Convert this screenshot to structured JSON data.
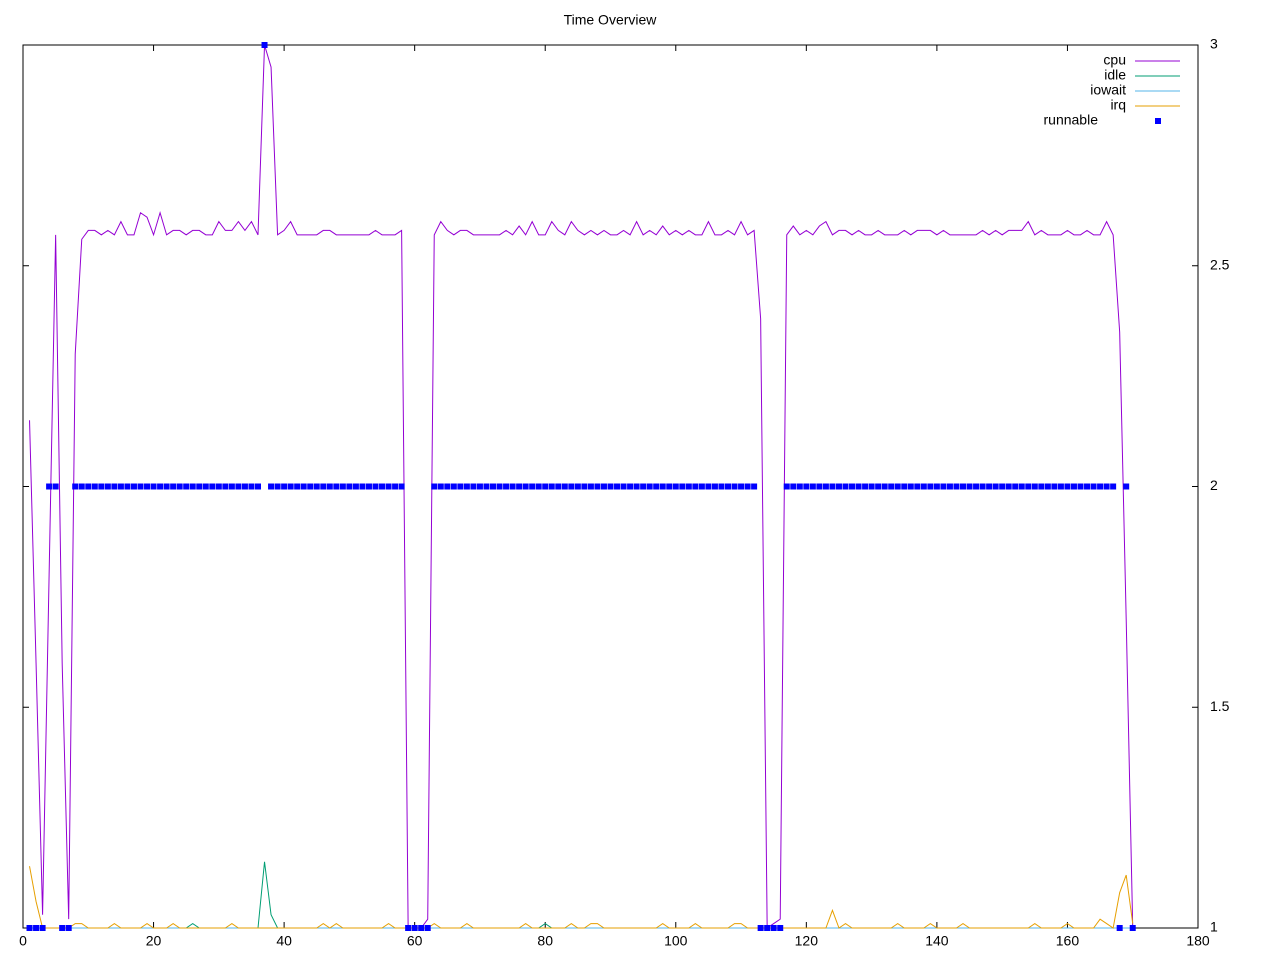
{
  "chart_data": {
    "type": "line",
    "title": "Time Overview",
    "x": [
      1,
      2,
      3,
      4,
      5,
      6,
      7,
      8,
      9,
      10,
      11,
      12,
      13,
      14,
      15,
      16,
      17,
      18,
      19,
      20,
      21,
      22,
      23,
      24,
      25,
      26,
      27,
      28,
      29,
      30,
      31,
      32,
      33,
      34,
      35,
      36,
      37,
      38,
      39,
      40,
      41,
      42,
      43,
      44,
      45,
      46,
      47,
      48,
      49,
      50,
      51,
      52,
      53,
      54,
      55,
      56,
      57,
      58,
      59,
      60,
      61,
      62,
      63,
      64,
      65,
      66,
      67,
      68,
      69,
      70,
      71,
      72,
      73,
      74,
      75,
      76,
      77,
      78,
      79,
      80,
      81,
      82,
      83,
      84,
      85,
      86,
      87,
      88,
      89,
      90,
      91,
      92,
      93,
      94,
      95,
      96,
      97,
      98,
      99,
      100,
      101,
      102,
      103,
      104,
      105,
      106,
      107,
      108,
      109,
      110,
      111,
      112,
      113,
      114,
      115,
      116,
      117,
      118,
      119,
      120,
      121,
      122,
      123,
      124,
      125,
      126,
      127,
      128,
      129,
      130,
      131,
      132,
      133,
      134,
      135,
      136,
      137,
      138,
      139,
      140,
      141,
      142,
      143,
      144,
      145,
      146,
      147,
      148,
      149,
      150,
      151,
      152,
      153,
      154,
      155,
      156,
      157,
      158,
      159,
      160,
      161,
      162,
      163,
      164,
      165,
      166,
      167,
      168,
      169,
      170
    ],
    "series": [
      {
        "name": "cpu",
        "color": "#9400d3",
        "style": "line",
        "values": [
          2.15,
          1.6,
          1.03,
          1.8,
          2.57,
          1.6,
          1.02,
          2.3,
          2.56,
          2.58,
          2.58,
          2.57,
          2.58,
          2.57,
          2.6,
          2.57,
          2.57,
          2.62,
          2.61,
          2.57,
          2.62,
          2.57,
          2.58,
          2.58,
          2.57,
          2.58,
          2.58,
          2.57,
          2.57,
          2.6,
          2.58,
          2.58,
          2.6,
          2.58,
          2.6,
          2.57,
          3.0,
          2.95,
          2.57,
          2.58,
          2.6,
          2.57,
          2.57,
          2.57,
          2.57,
          2.58,
          2.58,
          2.57,
          2.57,
          2.57,
          2.57,
          2.57,
          2.57,
          2.58,
          2.57,
          2.57,
          2.57,
          2.58,
          1.0,
          1.0,
          1.0,
          1.02,
          2.57,
          2.6,
          2.58,
          2.57,
          2.58,
          2.58,
          2.57,
          2.57,
          2.57,
          2.57,
          2.57,
          2.58,
          2.57,
          2.59,
          2.57,
          2.6,
          2.57,
          2.57,
          2.6,
          2.58,
          2.57,
          2.6,
          2.58,
          2.57,
          2.58,
          2.57,
          2.58,
          2.57,
          2.57,
          2.58,
          2.57,
          2.6,
          2.57,
          2.58,
          2.57,
          2.59,
          2.57,
          2.58,
          2.57,
          2.58,
          2.57,
          2.57,
          2.6,
          2.57,
          2.57,
          2.58,
          2.57,
          2.6,
          2.57,
          2.58,
          2.38,
          1.0,
          1.01,
          1.02,
          2.57,
          2.59,
          2.57,
          2.58,
          2.57,
          2.59,
          2.6,
          2.57,
          2.58,
          2.58,
          2.57,
          2.58,
          2.57,
          2.57,
          2.58,
          2.57,
          2.57,
          2.57,
          2.58,
          2.57,
          2.58,
          2.58,
          2.58,
          2.57,
          2.58,
          2.57,
          2.57,
          2.57,
          2.57,
          2.57,
          2.58,
          2.57,
          2.58,
          2.57,
          2.58,
          2.58,
          2.58,
          2.6,
          2.57,
          2.58,
          2.57,
          2.57,
          2.57,
          2.58,
          2.57,
          2.57,
          2.58,
          2.57,
          2.57,
          2.6,
          2.57,
          2.35,
          1.7,
          1.0
        ]
      },
      {
        "name": "idle",
        "color": "#009e73",
        "style": "line",
        "values": [
          1,
          1,
          1,
          1,
          1,
          1,
          1,
          1,
          1,
          1,
          1,
          1,
          1,
          1,
          1,
          1,
          1,
          1,
          1,
          1,
          1,
          1,
          1,
          1,
          1,
          1.01,
          1,
          1,
          1,
          1,
          1,
          1,
          1,
          1,
          1,
          1,
          1.15,
          1.03,
          1,
          1,
          1,
          1,
          1,
          1,
          1,
          1,
          1,
          1,
          1,
          1,
          1,
          1,
          1,
          1,
          1,
          1,
          1,
          1,
          1,
          1,
          1,
          1,
          1,
          1,
          1,
          1,
          1,
          1,
          1,
          1,
          1,
          1,
          1,
          1,
          1,
          1,
          1,
          1,
          1,
          1.01,
          1,
          1,
          1,
          1,
          1,
          1,
          1,
          1,
          1,
          1,
          1,
          1,
          1,
          1,
          1,
          1,
          1,
          1,
          1,
          1,
          1,
          1,
          1,
          1,
          1,
          1,
          1,
          1,
          1,
          1,
          1,
          1,
          1,
          1,
          1,
          1,
          1,
          1,
          1,
          1,
          1,
          1,
          1,
          1,
          1,
          1,
          1,
          1,
          1,
          1,
          1,
          1,
          1,
          1,
          1,
          1,
          1,
          1,
          1,
          1,
          1,
          1,
          1,
          1,
          1,
          1,
          1,
          1,
          1,
          1,
          1,
          1,
          1,
          1,
          1,
          1,
          1,
          1,
          1,
          1,
          1,
          1,
          1,
          1,
          1,
          1,
          1,
          1,
          1,
          1
        ]
      },
      {
        "name": "iowait",
        "color": "#56b4e9",
        "style": "line",
        "values": [
          1,
          1,
          1,
          1,
          1,
          1,
          1,
          1,
          1,
          1,
          1,
          1,
          1,
          1,
          1,
          1,
          1,
          1,
          1,
          1,
          1,
          1,
          1,
          1,
          1,
          1,
          1,
          1,
          1,
          1,
          1,
          1,
          1,
          1,
          1,
          1,
          1,
          1,
          1,
          1,
          1,
          1,
          1,
          1,
          1,
          1,
          1,
          1,
          1,
          1,
          1,
          1,
          1,
          1,
          1,
          1,
          1,
          1,
          1,
          1,
          1,
          1,
          1,
          1,
          1,
          1,
          1,
          1,
          1,
          1,
          1,
          1,
          1,
          1,
          1,
          1,
          1,
          1,
          1,
          1,
          1,
          1,
          1,
          1,
          1,
          1,
          1,
          1,
          1,
          1,
          1,
          1,
          1,
          1,
          1,
          1,
          1,
          1,
          1,
          1,
          1,
          1,
          1,
          1,
          1,
          1,
          1,
          1,
          1,
          1,
          1,
          1,
          1,
          1,
          1,
          1,
          1,
          1,
          1,
          1,
          1,
          1,
          1,
          1,
          1,
          1,
          1,
          1,
          1,
          1,
          1,
          1,
          1,
          1,
          1,
          1,
          1,
          1,
          1,
          1,
          1,
          1,
          1,
          1,
          1,
          1,
          1,
          1,
          1,
          1,
          1,
          1,
          1,
          1,
          1,
          1,
          1,
          1,
          1,
          1,
          1,
          1,
          1,
          1,
          1,
          1,
          1,
          1,
          1,
          1
        ]
      },
      {
        "name": "irq",
        "color": "#e69f00",
        "style": "line",
        "values": [
          1.14,
          1.06,
          1,
          1,
          1,
          1,
          1,
          1.01,
          1.01,
          1,
          1,
          1,
          1,
          1.01,
          1,
          1,
          1,
          1,
          1.01,
          1,
          1,
          1,
          1.01,
          1,
          1,
          1,
          1,
          1,
          1,
          1,
          1,
          1.01,
          1,
          1,
          1,
          1,
          1,
          1,
          1,
          1,
          1,
          1,
          1,
          1,
          1,
          1.01,
          1,
          1.01,
          1,
          1,
          1,
          1,
          1,
          1,
          1,
          1.01,
          1,
          1,
          1,
          1,
          1,
          1,
          1.01,
          1,
          1,
          1,
          1,
          1.01,
          1,
          1,
          1,
          1,
          1,
          1,
          1,
          1,
          1.01,
          1,
          1,
          1,
          1,
          1,
          1,
          1.01,
          1,
          1,
          1.01,
          1.01,
          1,
          1,
          1,
          1,
          1,
          1,
          1,
          1,
          1,
          1.01,
          1,
          1,
          1,
          1,
          1.01,
          1,
          1,
          1,
          1,
          1,
          1.01,
          1.01,
          1,
          1,
          1,
          1,
          1,
          1,
          1,
          1,
          1,
          1,
          1,
          1,
          1,
          1.04,
          1,
          1.01,
          1,
          1,
          1,
          1,
          1,
          1,
          1,
          1.01,
          1,
          1,
          1,
          1,
          1.01,
          1,
          1,
          1,
          1,
          1.01,
          1,
          1,
          1,
          1,
          1,
          1,
          1,
          1,
          1,
          1,
          1.01,
          1,
          1,
          1,
          1,
          1.01,
          1,
          1,
          1,
          1,
          1.02,
          1.01,
          1,
          1.08,
          1.12,
          1.01
        ]
      },
      {
        "name": "runnable",
        "color": "#0000ff",
        "style": "points",
        "values": [
          1,
          1,
          1,
          2,
          2,
          1,
          1,
          2,
          2,
          2,
          2,
          2,
          2,
          2,
          2,
          2,
          2,
          2,
          2,
          2,
          2,
          2,
          2,
          2,
          2,
          2,
          2,
          2,
          2,
          2,
          2,
          2,
          2,
          2,
          2,
          2,
          3,
          2,
          2,
          2,
          2,
          2,
          2,
          2,
          2,
          2,
          2,
          2,
          2,
          2,
          2,
          2,
          2,
          2,
          2,
          2,
          2,
          2,
          1,
          1,
          1,
          1,
          2,
          2,
          2,
          2,
          2,
          2,
          2,
          2,
          2,
          2,
          2,
          2,
          2,
          2,
          2,
          2,
          2,
          2,
          2,
          2,
          2,
          2,
          2,
          2,
          2,
          2,
          2,
          2,
          2,
          2,
          2,
          2,
          2,
          2,
          2,
          2,
          2,
          2,
          2,
          2,
          2,
          2,
          2,
          2,
          2,
          2,
          2,
          2,
          2,
          2,
          1,
          1,
          1,
          1,
          2,
          2,
          2,
          2,
          2,
          2,
          2,
          2,
          2,
          2,
          2,
          2,
          2,
          2,
          2,
          2,
          2,
          2,
          2,
          2,
          2,
          2,
          2,
          2,
          2,
          2,
          2,
          2,
          2,
          2,
          2,
          2,
          2,
          2,
          2,
          2,
          2,
          2,
          2,
          2,
          2,
          2,
          2,
          2,
          2,
          2,
          2,
          2,
          2,
          2,
          2,
          1,
          2,
          1
        ]
      }
    ],
    "xlim": [
      0,
      180
    ],
    "xticks": [
      0,
      20,
      40,
      60,
      80,
      100,
      120,
      140,
      160,
      180
    ],
    "ylim": [
      1,
      3
    ],
    "yticks": [
      1,
      1.5,
      2,
      2.5,
      3
    ],
    "y_axis_side": "right",
    "grid": false,
    "legend": "top-right"
  }
}
